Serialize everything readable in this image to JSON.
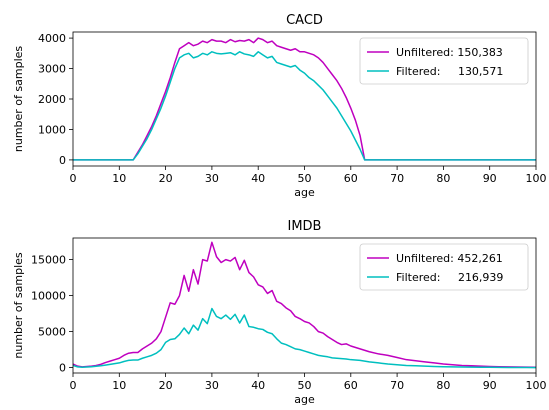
{
  "chart_data": [
    {
      "type": "line",
      "title": "CACD",
      "xlabel": "age",
      "ylabel": "number of samples",
      "xlim": [
        0,
        100
      ],
      "ylim": [
        -200,
        4200
      ],
      "xticks": [
        0,
        10,
        20,
        30,
        40,
        50,
        60,
        70,
        80,
        90,
        100
      ],
      "yticks": [
        0,
        1000,
        2000,
        3000,
        4000
      ],
      "legend_position": "top-right",
      "series": [
        {
          "name": "Unfiltered: 150,383",
          "color": "#bf00bf",
          "x": [
            0,
            13,
            14,
            15,
            16,
            17,
            18,
            19,
            20,
            21,
            22,
            23,
            24,
            25,
            26,
            27,
            28,
            29,
            30,
            31,
            32,
            33,
            34,
            35,
            36,
            37,
            38,
            39,
            40,
            41,
            42,
            43,
            44,
            45,
            46,
            47,
            48,
            49,
            50,
            51,
            52,
            53,
            54,
            55,
            56,
            57,
            58,
            59,
            60,
            61,
            62,
            63,
            100
          ],
          "y": [
            0,
            0,
            250,
            500,
            800,
            1100,
            1450,
            1850,
            2250,
            2700,
            3200,
            3650,
            3750,
            3850,
            3750,
            3800,
            3900,
            3850,
            3950,
            3900,
            3900,
            3850,
            3950,
            3880,
            3920,
            3900,
            3950,
            3850,
            4000,
            3950,
            3850,
            3900,
            3750,
            3700,
            3650,
            3600,
            3650,
            3550,
            3550,
            3500,
            3450,
            3350,
            3200,
            3000,
            2800,
            2600,
            2350,
            2050,
            1700,
            1300,
            800,
            0,
            0
          ]
        },
        {
          "name": "Filtered:     130,571",
          "color": "#00bfbf",
          "x": [
            0,
            13,
            14,
            15,
            16,
            17,
            18,
            19,
            20,
            21,
            22,
            23,
            24,
            25,
            26,
            27,
            28,
            29,
            30,
            31,
            32,
            33,
            34,
            35,
            36,
            37,
            38,
            39,
            40,
            41,
            42,
            43,
            44,
            45,
            46,
            47,
            48,
            49,
            50,
            51,
            52,
            53,
            54,
            55,
            56,
            57,
            58,
            59,
            60,
            61,
            62,
            63,
            100
          ],
          "y": [
            0,
            0,
            200,
            450,
            700,
            1000,
            1350,
            1700,
            2100,
            2550,
            3000,
            3350,
            3450,
            3500,
            3350,
            3400,
            3500,
            3450,
            3550,
            3500,
            3480,
            3500,
            3520,
            3450,
            3550,
            3480,
            3450,
            3400,
            3550,
            3450,
            3350,
            3400,
            3200,
            3150,
            3100,
            3050,
            3100,
            2950,
            2850,
            2700,
            2600,
            2450,
            2300,
            2100,
            1900,
            1700,
            1450,
            1200,
            950,
            650,
            350,
            0,
            0
          ]
        }
      ]
    },
    {
      "type": "line",
      "title": "IMDB",
      "xlabel": "age",
      "ylabel": "number of samples",
      "xlim": [
        0,
        100
      ],
      "ylim": [
        -750,
        18000
      ],
      "xticks": [
        0,
        10,
        20,
        30,
        40,
        50,
        60,
        70,
        80,
        90,
        100
      ],
      "yticks": [
        0,
        5000,
        10000,
        15000
      ],
      "legend_position": "top-right",
      "series": [
        {
          "name": "Unfiltered: 452,261",
          "color": "#bf00bf",
          "x": [
            0,
            1,
            2,
            3,
            4,
            5,
            6,
            7,
            8,
            9,
            10,
            11,
            12,
            13,
            14,
            15,
            16,
            17,
            18,
            19,
            20,
            21,
            22,
            23,
            24,
            25,
            26,
            27,
            28,
            29,
            30,
            31,
            32,
            33,
            34,
            35,
            36,
            37,
            38,
            39,
            40,
            41,
            42,
            43,
            44,
            45,
            46,
            47,
            48,
            49,
            50,
            51,
            52,
            53,
            54,
            55,
            56,
            57,
            58,
            59,
            60,
            62,
            64,
            66,
            68,
            70,
            72,
            74,
            76,
            78,
            80,
            82,
            84,
            86,
            88,
            90,
            92,
            94,
            96,
            98,
            100
          ],
          "y": [
            500,
            200,
            100,
            150,
            200,
            300,
            450,
            700,
            900,
            1100,
            1300,
            1700,
            2000,
            2100,
            2100,
            2600,
            3000,
            3400,
            4000,
            5000,
            7000,
            9000,
            8800,
            10000,
            12800,
            10600,
            13600,
            11600,
            15000,
            14800,
            17400,
            15400,
            14600,
            15000,
            14800,
            15300,
            13600,
            14900,
            13200,
            12600,
            11500,
            11200,
            10300,
            10700,
            9200,
            8900,
            8300,
            7900,
            7100,
            6800,
            6400,
            6200,
            5700,
            5000,
            4800,
            4300,
            3900,
            3500,
            3200,
            3300,
            3000,
            2600,
            2200,
            1900,
            1700,
            1400,
            1100,
            950,
            800,
            650,
            500,
            400,
            300,
            250,
            200,
            150,
            120,
            100,
            80,
            60,
            50
          ]
        },
        {
          "name": "Filtered:     216,939",
          "color": "#00bfbf",
          "x": [
            0,
            1,
            2,
            3,
            4,
            5,
            6,
            7,
            8,
            9,
            10,
            11,
            12,
            13,
            14,
            15,
            16,
            17,
            18,
            19,
            20,
            21,
            22,
            23,
            24,
            25,
            26,
            27,
            28,
            29,
            30,
            31,
            32,
            33,
            34,
            35,
            36,
            37,
            38,
            39,
            40,
            41,
            42,
            43,
            44,
            45,
            46,
            47,
            48,
            49,
            50,
            51,
            52,
            53,
            54,
            55,
            56,
            57,
            58,
            59,
            60,
            62,
            64,
            66,
            68,
            70,
            72,
            74,
            76,
            78,
            80,
            82,
            84,
            86,
            88,
            90,
            92,
            94,
            96,
            98,
            100
          ],
          "y": [
            300,
            100,
            50,
            80,
            120,
            180,
            250,
            350,
            450,
            550,
            650,
            850,
            1000,
            1050,
            1050,
            1300,
            1500,
            1700,
            2000,
            2500,
            3500,
            3900,
            4000,
            4600,
            5500,
            4700,
            5900,
            5200,
            6800,
            6100,
            8200,
            7100,
            6800,
            7300,
            6700,
            7400,
            6200,
            7300,
            5700,
            5600,
            5400,
            5300,
            4900,
            4700,
            4000,
            3400,
            3200,
            2900,
            2600,
            2500,
            2300,
            2100,
            1900,
            1700,
            1600,
            1500,
            1350,
            1300,
            1250,
            1200,
            1100,
            1000,
            800,
            650,
            500,
            400,
            300,
            250,
            200,
            150,
            120,
            100,
            80,
            60,
            50,
            40,
            30,
            20,
            10,
            10,
            0
          ]
        }
      ]
    }
  ]
}
